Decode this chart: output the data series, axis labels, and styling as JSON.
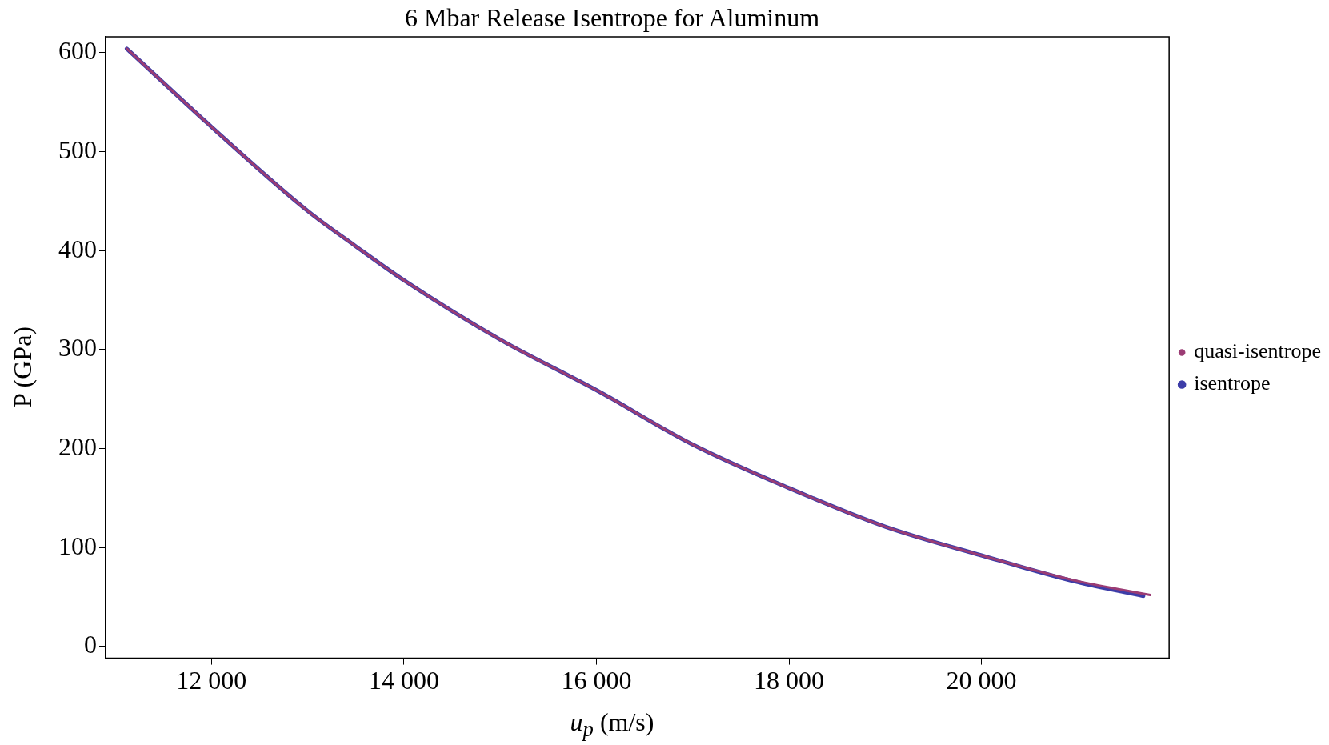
{
  "chart_data": {
    "type": "line",
    "title": "6 Mbar Release Isentrope for Aluminum",
    "xlabel": "u$_{p}$ (m/s)",
    "ylabel": "P (GPa)",
    "xlim": [
      10900,
      21950
    ],
    "xticks": [
      {
        "value": 12000,
        "label": "12 000"
      },
      {
        "value": 14000,
        "label": "14 000"
      },
      {
        "value": 16000,
        "label": "16 000"
      },
      {
        "value": 18000,
        "label": "18 000"
      },
      {
        "value": 20000,
        "label": "20 000"
      }
    ],
    "ylim": [
      -12,
      616
    ],
    "yticks": [
      0,
      100,
      200,
      300,
      400,
      500,
      600
    ],
    "grid": false,
    "legend": "right",
    "marker": "none",
    "line_style": "solid",
    "series": [
      {
        "name": "isentrope",
        "color": "#3d3da8",
        "x": [
          11120,
          12000,
          13000,
          13490,
          14000,
          15000,
          16000,
          17000,
          18000,
          19000,
          20000,
          21000,
          21682
        ],
        "values": [
          604,
          525,
          440,
          405,
          370,
          310,
          259,
          204,
          160,
          121,
          92,
          65,
          51
        ]
      },
      {
        "name": "quasi-isentrope",
        "color": "#9b3c74",
        "x": [
          11120,
          12000,
          13000,
          13490,
          14000,
          15000,
          16000,
          17000,
          18000,
          19000,
          20000,
          21000,
          21755
        ],
        "values": [
          604,
          525,
          440,
          405,
          370,
          310,
          259,
          204,
          160,
          121,
          92,
          66,
          52
        ]
      }
    ]
  }
}
